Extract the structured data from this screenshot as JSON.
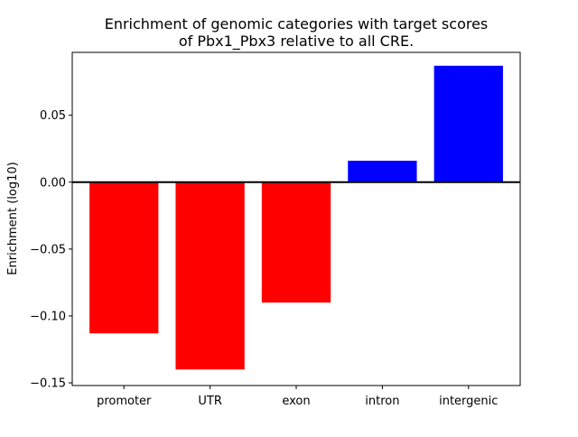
{
  "chart_data": {
    "type": "bar",
    "title_lines": [
      "Enrichment of genomic categories with target scores",
      "of Pbx1_Pbx3 relative to all CRE."
    ],
    "xlabel": "",
    "ylabel": "Enrichment (log10)",
    "categories": [
      "promoter",
      "UTR",
      "exon",
      "intron",
      "intergenic"
    ],
    "values": [
      -0.113,
      -0.14,
      -0.09,
      0.016,
      0.087
    ],
    "ylim": [
      -0.152,
      0.097
    ],
    "yticks": [
      -0.15,
      -0.1,
      -0.05,
      0.0,
      0.05
    ],
    "ytick_labels": [
      "−0.15",
      "−0.10",
      "−0.05",
      "0.00",
      "0.05"
    ],
    "grid": false,
    "legend": "none",
    "zero_line": true,
    "colors": {
      "negative": "#ff0000",
      "positive": "#0000ff",
      "axis": "#000000"
    }
  }
}
